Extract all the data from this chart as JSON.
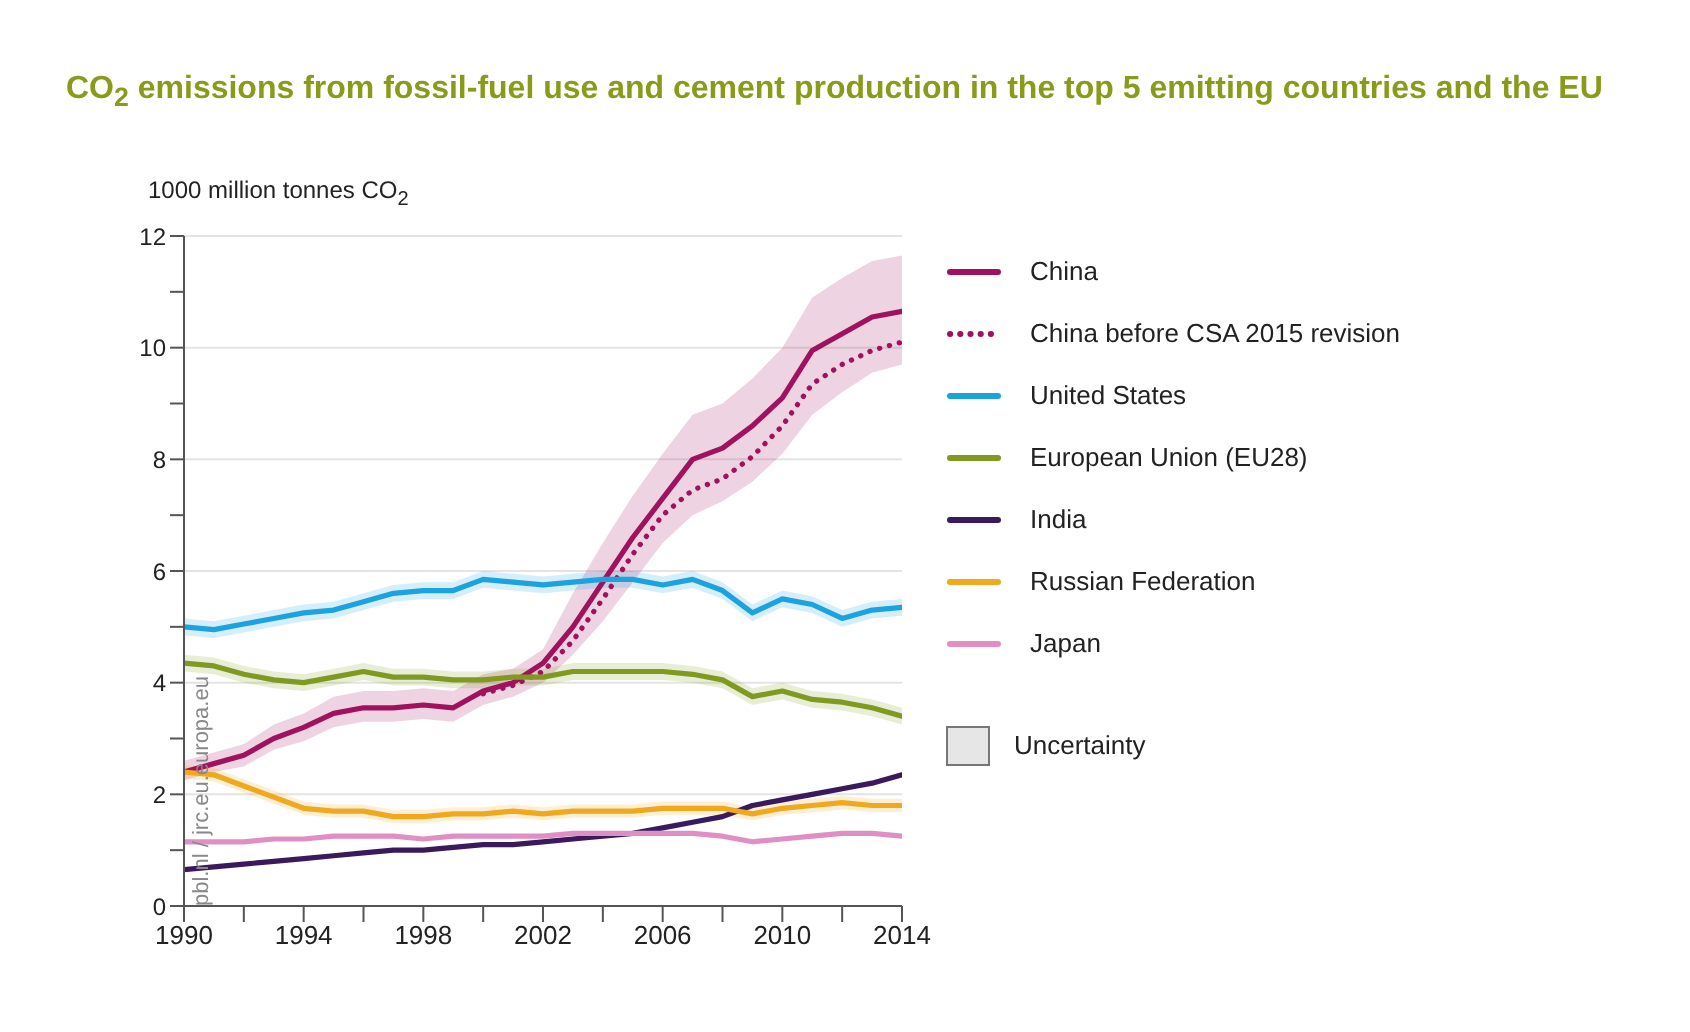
{
  "chart_data": {
    "type": "line",
    "title": "CO$_{2}$ emissions from fossil-fuel use and cement production in the top 5 emitting countries and the EU",
    "ylabel": "1000 million tonnes CO$_{2}$",
    "x": [
      1990,
      1991,
      1992,
      1993,
      1994,
      1995,
      1996,
      1997,
      1998,
      1999,
      2000,
      2001,
      2002,
      2003,
      2004,
      2005,
      2006,
      2007,
      2008,
      2009,
      2010,
      2011,
      2012,
      2013,
      2014
    ],
    "series": [
      {
        "name": "China",
        "color": "#a0115e",
        "values": [
          2.4,
          2.55,
          2.7,
          3.0,
          3.2,
          3.45,
          3.55,
          3.55,
          3.6,
          3.55,
          3.85,
          4.0,
          4.35,
          5.0,
          5.8,
          6.6,
          7.3,
          8.0,
          8.2,
          8.6,
          9.1,
          9.95,
          10.25,
          10.55,
          10.65
        ],
        "lower": [
          2.25,
          2.4,
          2.5,
          2.8,
          2.95,
          3.2,
          3.3,
          3.3,
          3.35,
          3.3,
          3.6,
          3.75,
          4.0,
          4.5,
          5.1,
          5.8,
          6.5,
          7.0,
          7.25,
          7.6,
          8.1,
          8.8,
          9.2,
          9.55,
          9.7
        ],
        "upper": [
          2.6,
          2.75,
          2.9,
          3.25,
          3.45,
          3.75,
          3.85,
          3.85,
          3.9,
          3.85,
          4.15,
          4.25,
          4.6,
          5.6,
          6.5,
          7.35,
          8.1,
          8.8,
          9.0,
          9.45,
          10.0,
          10.9,
          11.25,
          11.55,
          11.65
        ]
      },
      {
        "name": "China before CSA 2015 revision",
        "color": "#a0115e",
        "line_style": "dotted",
        "values": [
          null,
          null,
          null,
          null,
          null,
          null,
          null,
          null,
          null,
          null,
          3.8,
          3.95,
          4.2,
          4.75,
          5.5,
          6.3,
          7.0,
          7.45,
          7.65,
          8.05,
          8.6,
          9.35,
          9.7,
          9.95,
          10.1
        ]
      },
      {
        "name": "United States",
        "color": "#1aa3de",
        "values": [
          5.0,
          4.95,
          5.05,
          5.15,
          5.25,
          5.3,
          5.45,
          5.6,
          5.65,
          5.65,
          5.85,
          5.8,
          5.75,
          5.8,
          5.85,
          5.85,
          5.75,
          5.85,
          5.65,
          5.25,
          5.5,
          5.4,
          5.15,
          5.3,
          5.35
        ],
        "lower": [
          4.85,
          4.8,
          4.9,
          5.0,
          5.1,
          5.15,
          5.3,
          5.45,
          5.5,
          5.5,
          5.7,
          5.65,
          5.6,
          5.65,
          5.7,
          5.7,
          5.6,
          5.7,
          5.5,
          5.1,
          5.35,
          5.25,
          5.0,
          5.15,
          5.2
        ],
        "upper": [
          5.15,
          5.1,
          5.2,
          5.3,
          5.4,
          5.45,
          5.6,
          5.75,
          5.8,
          5.8,
          6.0,
          5.95,
          5.9,
          5.95,
          6.0,
          6.0,
          5.9,
          6.0,
          5.8,
          5.4,
          5.65,
          5.55,
          5.3,
          5.45,
          5.5
        ]
      },
      {
        "name": "European Union (EU28)",
        "color": "#7f9a1f",
        "values": [
          4.35,
          4.3,
          4.15,
          4.05,
          4.0,
          4.1,
          4.2,
          4.1,
          4.1,
          4.05,
          4.05,
          4.1,
          4.1,
          4.2,
          4.2,
          4.2,
          4.2,
          4.15,
          4.05,
          3.75,
          3.85,
          3.7,
          3.65,
          3.55,
          3.4
        ],
        "lower": [
          4.2,
          4.15,
          4.0,
          3.9,
          3.85,
          3.95,
          4.05,
          3.95,
          3.95,
          3.9,
          3.9,
          3.95,
          3.95,
          4.05,
          4.05,
          4.05,
          4.05,
          4.0,
          3.9,
          3.6,
          3.7,
          3.55,
          3.5,
          3.4,
          3.25
        ],
        "upper": [
          4.5,
          4.45,
          4.3,
          4.2,
          4.15,
          4.25,
          4.35,
          4.25,
          4.25,
          4.2,
          4.2,
          4.25,
          4.25,
          4.35,
          4.35,
          4.35,
          4.35,
          4.3,
          4.2,
          3.9,
          4.0,
          3.85,
          3.8,
          3.7,
          3.55
        ]
      },
      {
        "name": "India",
        "color": "#3a1a5c",
        "values": [
          0.65,
          0.7,
          0.75,
          0.8,
          0.85,
          0.9,
          0.95,
          1.0,
          1.0,
          1.05,
          1.1,
          1.1,
          1.15,
          1.2,
          1.25,
          1.3,
          1.4,
          1.5,
          1.6,
          1.8,
          1.9,
          2.0,
          2.1,
          2.2,
          2.35
        ]
      },
      {
        "name": "Russian Federation",
        "color": "#f0a81c",
        "values": [
          2.4,
          2.35,
          2.15,
          1.95,
          1.75,
          1.7,
          1.7,
          1.6,
          1.6,
          1.65,
          1.65,
          1.7,
          1.65,
          1.7,
          1.7,
          1.7,
          1.75,
          1.75,
          1.75,
          1.65,
          1.75,
          1.8,
          1.85,
          1.8,
          1.8
        ],
        "lower": [
          2.28,
          2.23,
          2.03,
          1.83,
          1.63,
          1.58,
          1.58,
          1.48,
          1.48,
          1.53,
          1.53,
          1.58,
          1.53,
          1.58,
          1.58,
          1.58,
          1.63,
          1.63,
          1.63,
          1.53,
          1.63,
          1.68,
          1.73,
          1.68,
          1.68
        ],
        "upper": [
          2.52,
          2.47,
          2.27,
          2.07,
          1.87,
          1.82,
          1.82,
          1.72,
          1.72,
          1.77,
          1.77,
          1.82,
          1.77,
          1.82,
          1.82,
          1.82,
          1.87,
          1.87,
          1.87,
          1.77,
          1.87,
          1.92,
          1.97,
          1.92,
          1.92
        ]
      },
      {
        "name": "Japan",
        "color": "#e08fc4",
        "values": [
          1.15,
          1.15,
          1.15,
          1.2,
          1.2,
          1.25,
          1.25,
          1.25,
          1.2,
          1.25,
          1.25,
          1.25,
          1.25,
          1.3,
          1.3,
          1.3,
          1.3,
          1.3,
          1.25,
          1.15,
          1.2,
          1.25,
          1.3,
          1.3,
          1.25
        ]
      }
    ],
    "xlim": [
      1990,
      2014
    ],
    "xticks": [
      1990,
      {
        "value": 1992,
        "label": null
      },
      1994,
      {
        "value": 1996,
        "label": null
      },
      1998,
      {
        "value": 2000,
        "label": null
      },
      2002,
      {
        "value": 2004,
        "label": null
      },
      2006,
      {
        "value": 2008,
        "label": null
      },
      2010,
      {
        "value": 2012,
        "label": null
      },
      2014
    ],
    "ylim": [
      0,
      12
    ],
    "yticks": [
      0,
      {
        "value": 1,
        "label": null
      },
      2,
      {
        "value": 3,
        "label": null
      },
      4,
      {
        "value": 5,
        "label": null
      },
      6,
      {
        "value": 7,
        "label": null
      },
      8,
      {
        "value": 9,
        "label": null
      },
      10,
      {
        "value": 11,
        "label": null
      },
      12
    ],
    "grid": "y",
    "legend": "right",
    "marker": "none",
    "line_style": "solid",
    "annotations": [
      "pbl.nl / jrc.eu.europa.eu",
      "Uncertainty"
    ]
  }
}
